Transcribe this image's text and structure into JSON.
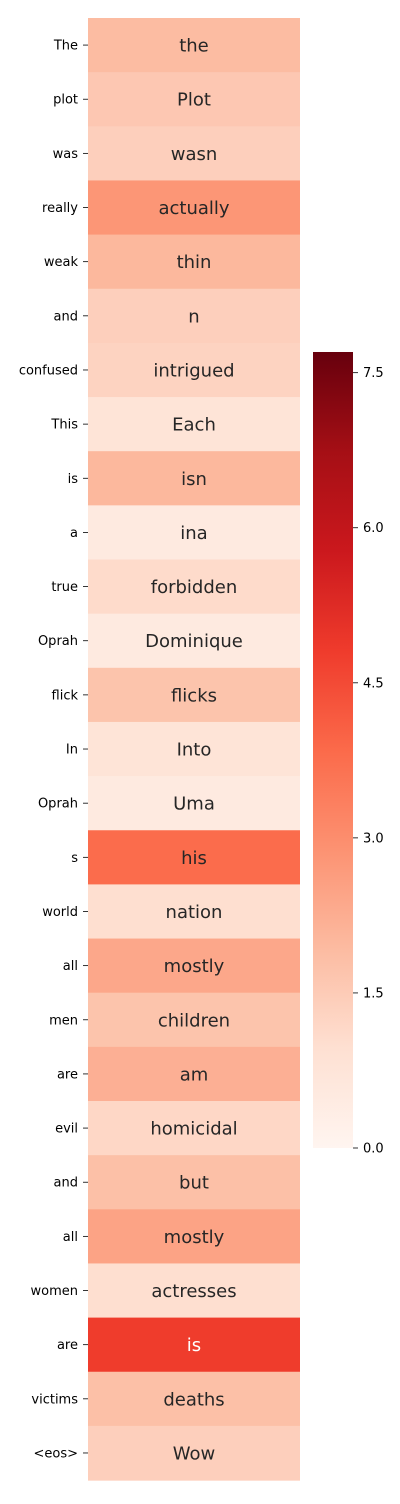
{
  "chart_data": {
    "type": "heatmap",
    "row_labels": [
      "The",
      "plot",
      "was",
      "really",
      "weak",
      "and",
      "confused",
      "This",
      "is",
      "a",
      "true",
      "Oprah",
      "flick",
      "In",
      "Oprah",
      "s",
      "world",
      "all",
      "men",
      "are",
      "evil",
      "and",
      "all",
      "women",
      "are",
      "victims",
      "<eos>"
    ],
    "cell_labels": [
      "the",
      "Plot",
      "wasn",
      "actually",
      "thin",
      "n",
      "intrigued",
      "Each",
      "isn",
      "ina",
      "forbidden",
      "Dominique",
      "flicks",
      "Into",
      "Uma",
      "his",
      "nation",
      "mostly",
      "children",
      "am",
      "homicidal",
      "but",
      "mostly",
      "actresses",
      "is",
      "deaths",
      "Wow"
    ],
    "values": [
      1.9,
      1.6,
      1.4,
      2.8,
      2.0,
      1.4,
      1.3,
      0.8,
      2.0,
      0.5,
      1.1,
      0.5,
      1.7,
      0.8,
      0.5,
      3.8,
      1.0,
      2.4,
      1.7,
      2.2,
      1.2,
      1.8,
      2.5,
      1.0,
      4.8,
      1.8,
      1.4
    ],
    "colormap": "Reds",
    "colorbar": {
      "min": 0.0,
      "max": 7.7,
      "ticks": [
        "0.0",
        "1.5",
        "3.0",
        "4.5",
        "6.0",
        "7.5"
      ],
      "tick_values": [
        0.0,
        1.5,
        3.0,
        4.5,
        6.0,
        7.5
      ]
    }
  }
}
